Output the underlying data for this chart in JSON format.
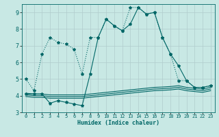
{
  "xlabel": "Humidex (Indice chaleur)",
  "xlim": [
    -0.5,
    23.5
  ],
  "ylim": [
    3,
    9.5
  ],
  "yticks": [
    3,
    4,
    5,
    6,
    7,
    8,
    9
  ],
  "xticks": [
    0,
    1,
    2,
    3,
    4,
    5,
    6,
    7,
    8,
    9,
    10,
    11,
    12,
    13,
    14,
    15,
    16,
    17,
    18,
    19,
    20,
    21,
    22,
    23
  ],
  "bg_color": "#c8e8e4",
  "grid_color": "#b0cccc",
  "line_color": "#006666",
  "lines": [
    {
      "x": [
        0,
        1,
        2,
        3,
        4,
        5,
        6,
        7,
        8,
        9,
        10,
        11,
        12,
        13,
        14,
        15,
        16,
        17,
        18,
        19,
        20,
        21,
        22,
        23
      ],
      "y": [
        5.0,
        4.3,
        6.5,
        7.5,
        7.2,
        7.1,
        6.8,
        5.3,
        7.5,
        7.5,
        8.6,
        8.2,
        7.9,
        9.3,
        9.3,
        8.9,
        9.0,
        7.5,
        6.5,
        4.9,
        4.9,
        4.5,
        4.5,
        4.6
      ],
      "linestyle": "dotted",
      "marker": true
    },
    {
      "x": [
        0,
        1,
        2,
        3,
        4,
        5,
        6,
        7,
        8,
        9,
        10,
        11,
        12,
        13,
        14,
        15,
        16,
        17,
        18,
        19,
        20,
        21,
        22,
        23
      ],
      "y": [
        4.1,
        4.1,
        4.1,
        3.55,
        3.7,
        3.6,
        3.5,
        3.4,
        5.3,
        7.5,
        8.6,
        8.2,
        7.9,
        8.3,
        9.3,
        8.9,
        9.0,
        7.5,
        6.5,
        5.8,
        4.9,
        4.5,
        4.5,
        4.6
      ],
      "linestyle": "solid",
      "marker": true
    },
    {
      "x": [
        0,
        1,
        2,
        3,
        4,
        5,
        6,
        7,
        8,
        9,
        10,
        11,
        12,
        13,
        14,
        15,
        16,
        17,
        18,
        19,
        20,
        21,
        22,
        23
      ],
      "y": [
        4.15,
        4.1,
        4.1,
        4.05,
        4.05,
        4.05,
        4.05,
        4.05,
        4.1,
        4.15,
        4.2,
        4.25,
        4.3,
        4.35,
        4.4,
        4.45,
        4.5,
        4.52,
        4.55,
        4.6,
        4.5,
        4.45,
        4.4,
        4.5
      ],
      "linestyle": "solid",
      "marker": false
    },
    {
      "x": [
        0,
        1,
        2,
        3,
        4,
        5,
        6,
        7,
        8,
        9,
        10,
        11,
        12,
        13,
        14,
        15,
        16,
        17,
        18,
        19,
        20,
        21,
        22,
        23
      ],
      "y": [
        4.05,
        4.0,
        4.0,
        3.95,
        3.95,
        3.95,
        3.95,
        3.95,
        4.0,
        4.05,
        4.1,
        4.15,
        4.2,
        4.25,
        4.3,
        4.35,
        4.4,
        4.42,
        4.45,
        4.5,
        4.4,
        4.35,
        4.3,
        4.4
      ],
      "linestyle": "solid",
      "marker": false
    },
    {
      "x": [
        0,
        1,
        2,
        3,
        4,
        5,
        6,
        7,
        8,
        9,
        10,
        11,
        12,
        13,
        14,
        15,
        16,
        17,
        18,
        19,
        20,
        21,
        22,
        23
      ],
      "y": [
        3.95,
        3.9,
        3.9,
        3.85,
        3.85,
        3.85,
        3.85,
        3.85,
        3.9,
        3.95,
        4.0,
        4.05,
        4.1,
        4.15,
        4.2,
        4.25,
        4.3,
        4.32,
        4.35,
        4.4,
        4.3,
        4.25,
        4.2,
        4.3
      ],
      "linestyle": "solid",
      "marker": false
    }
  ]
}
